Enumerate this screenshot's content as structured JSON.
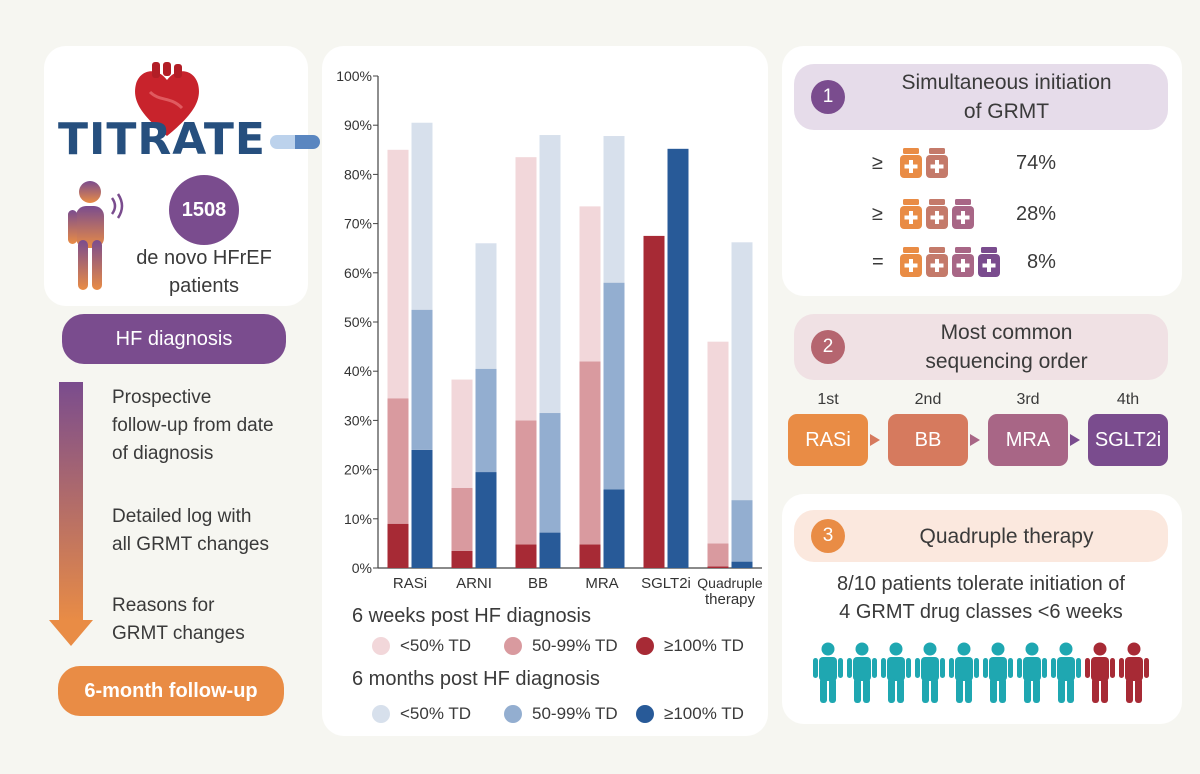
{
  "logo": {
    "text": "TITRATE-HF"
  },
  "left": {
    "patients_count": "1508",
    "patients_label_1": "de novo HFrEF",
    "patients_label_2": "patients",
    "diagnosis_pill": "HF diagnosis",
    "steps": [
      [
        "Prospective",
        "follow-up from date",
        "of diagnosis"
      ],
      [
        "Detailed log with",
        "all GRMT changes"
      ],
      [
        "Reasons for",
        "GRMT changes"
      ]
    ],
    "followup_pill": "6-month follow-up"
  },
  "chart_data": {
    "type": "bar",
    "categories": [
      "RASi",
      "ARNI",
      "BB",
      "MRA",
      "SGLT2i",
      "Quadruple therapy"
    ],
    "category_labels": [
      [
        "RASi"
      ],
      [
        "ARNI"
      ],
      [
        "BB"
      ],
      [
        "MRA"
      ],
      [
        "SGLT2i"
      ],
      [
        "Quadruple",
        "therapy"
      ]
    ],
    "ylim": [
      0,
      100
    ],
    "yticks": [
      "0%",
      "10%",
      "20%",
      "30%",
      "40%",
      "50%",
      "60%",
      "70%",
      "80%",
      "90%",
      "100%"
    ],
    "groups": [
      {
        "name": "6 weeks post HF diagnosis",
        "series": [
          {
            "name": "≥100% TD",
            "color": "#a72a35",
            "values": [
              9,
              3.5,
              4.8,
              4.8,
              67.5,
              0.3
            ]
          },
          {
            "name": "50-99% TD",
            "color": "#d99a9f",
            "values": [
              25.5,
              12.8,
              25.2,
              37.2,
              0,
              4.7
            ]
          },
          {
            "name": "<50% TD",
            "color": "#f2d7da",
            "values": [
              50.5,
              22,
              53.5,
              31.5,
              0,
              41
            ]
          }
        ]
      },
      {
        "name": "6 months post HF diagnosis",
        "series": [
          {
            "name": "≥100% TD",
            "color": "#285a98",
            "values": [
              24,
              19.5,
              7.2,
              16,
              85.2,
              1.3
            ]
          },
          {
            "name": "50-99% TD",
            "color": "#93aed0",
            "values": [
              28.5,
              21,
              24.3,
              42,
              0,
              12.5
            ]
          },
          {
            "name": "<50% TD",
            "color": "#d7e0ec",
            "values": [
              38,
              25.5,
              56.5,
              29.8,
              0,
              52.4
            ]
          }
        ]
      }
    ],
    "legend": {
      "weeks_title": "6 weeks post HF diagnosis",
      "months_title": "6 months post HF diagnosis",
      "weeks_items": [
        "<50% TD",
        "50-99% TD",
        "≥100% TD"
      ],
      "months_items": [
        "<50% TD",
        "50-99% TD",
        "≥100% TD"
      ],
      "weeks_colors": [
        "#f2d7da",
        "#d99a9f",
        "#a72a35"
      ],
      "months_colors": [
        "#d7e0ec",
        "#93aed0",
        "#285a98"
      ]
    }
  },
  "right": {
    "s1": {
      "num": "1",
      "title_1": "Simultaneous initiation",
      "title_2": "of GRMT",
      "rows": [
        {
          "cmp": "≥",
          "pct": "74%"
        },
        {
          "cmp": "≥",
          "pct": "28%"
        },
        {
          "cmp": "=",
          "pct": "8%"
        }
      ]
    },
    "s2": {
      "num": "2",
      "title_1": "Most common",
      "title_2": "sequencing order",
      "order": [
        "1st",
        "2nd",
        "3rd",
        "4th"
      ],
      "drugs": [
        "RASi",
        "BB",
        "MRA",
        "SGLT2i"
      ]
    },
    "s3": {
      "num": "3",
      "title": "Quadruple therapy",
      "text_1": "8/10 patients tolerate initiation of",
      "text_2": "4 GRMT drug classes <6 weeks",
      "people_total": 10,
      "people_tolerate": 8
    }
  },
  "colors": {
    "purple": "#7a4c8e",
    "orange": "#e98c45",
    "teal": "#1fa7b1",
    "darkred": "#a72a35",
    "s1_bg": "#e6dcea",
    "s2_bg": "#f0e1e4",
    "s3_bg": "#fbe8de"
  }
}
